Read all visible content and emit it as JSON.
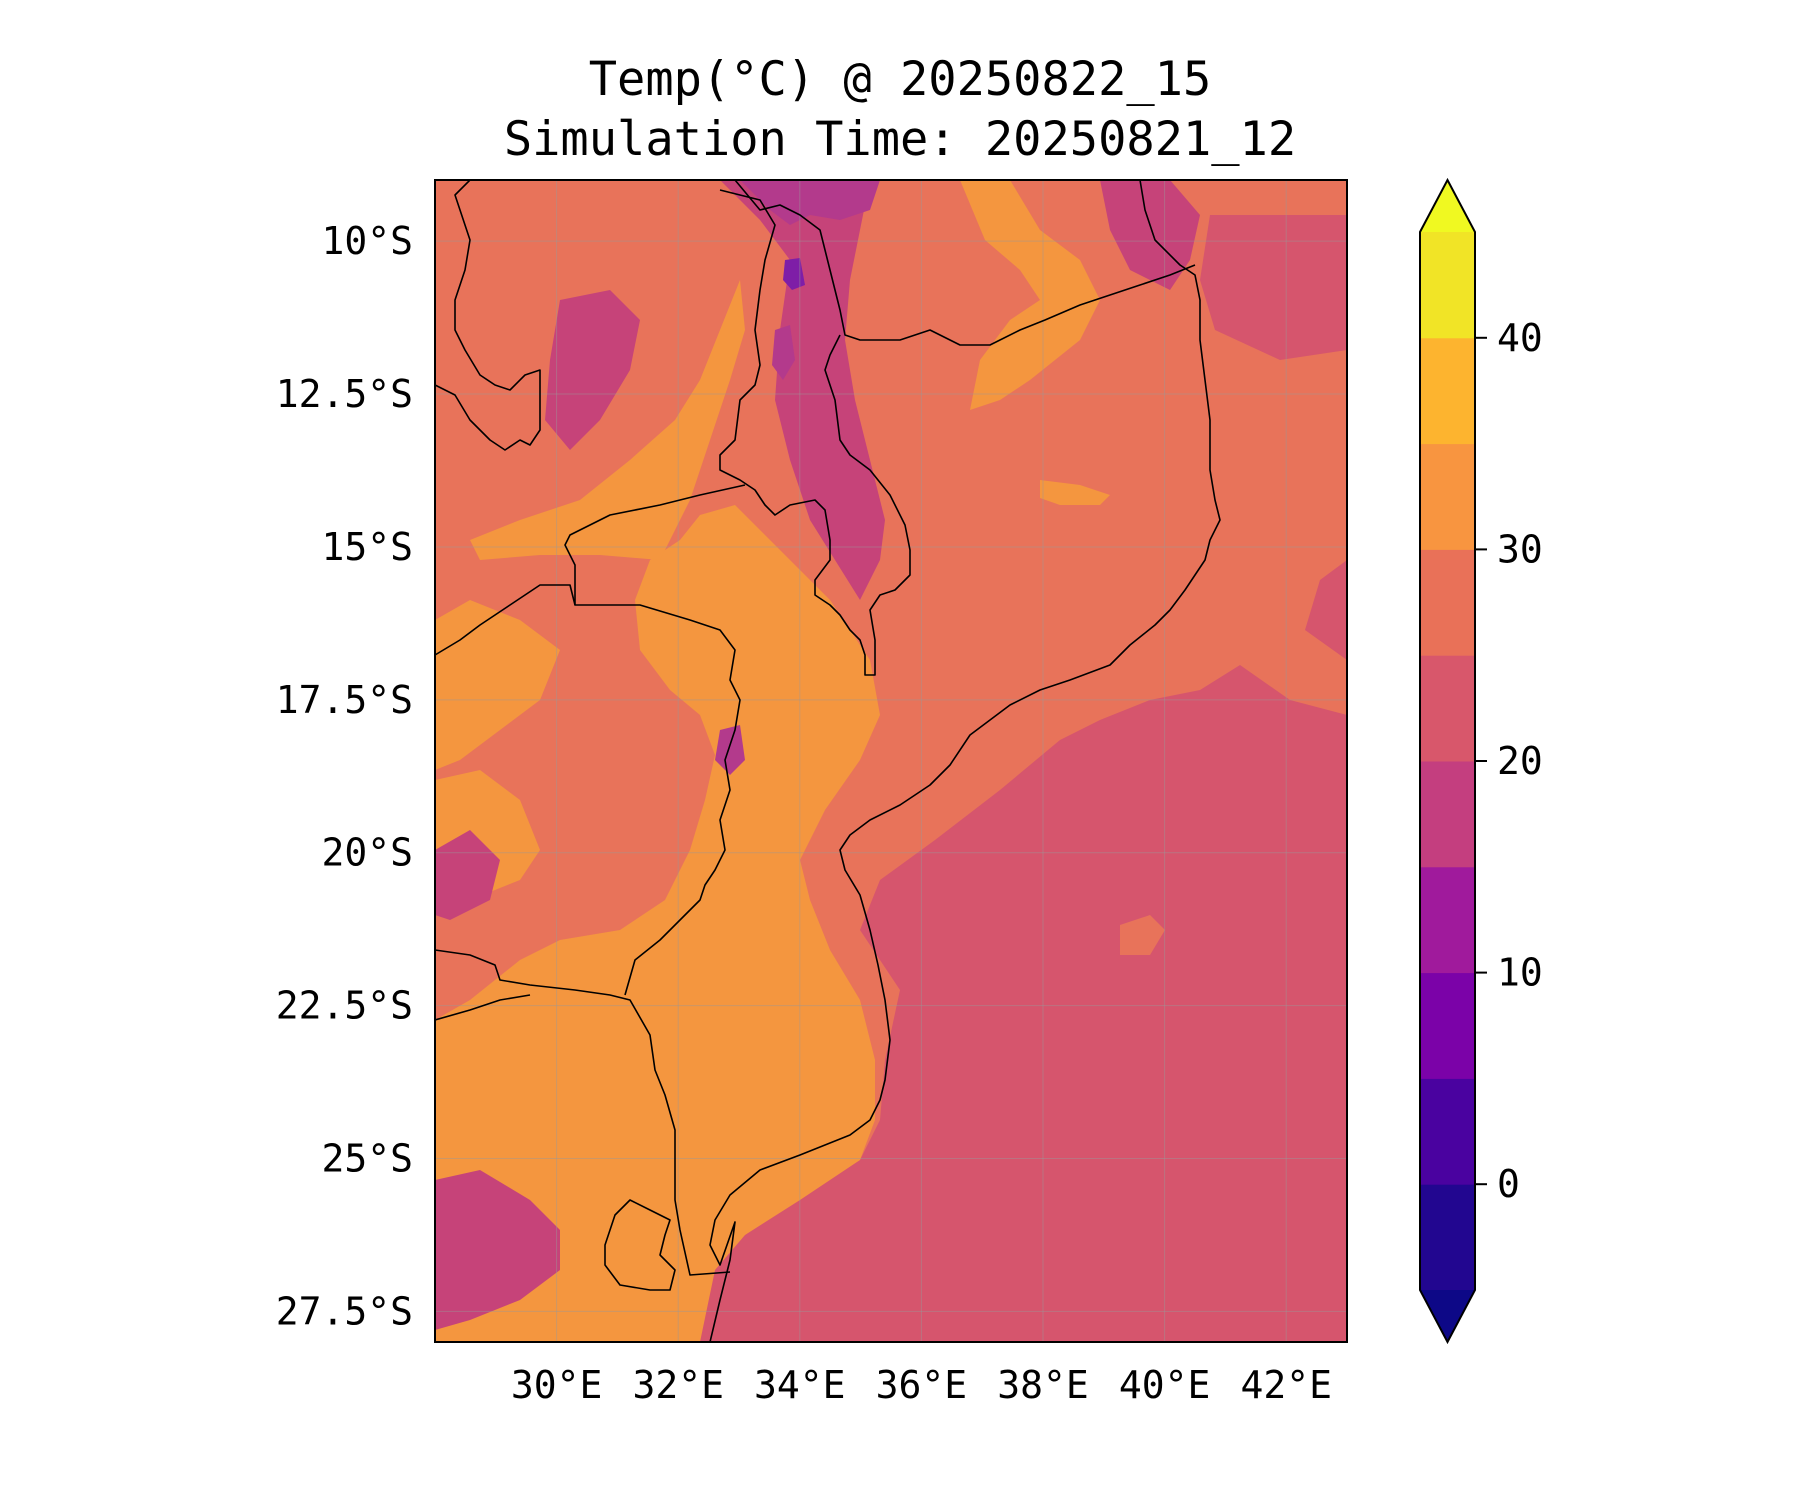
{
  "title": {
    "line1": "Temp(°C) @ 20250822_15",
    "line2": "Simulation Time: 20250821_12"
  },
  "map": {
    "variable": "Temperature",
    "units": "°C",
    "valid_time": "20250822_15",
    "simulation_time": "20250821_12",
    "lon_range": [
      28.0,
      43.0
    ],
    "lat_range": [
      -28.0,
      -9.0
    ],
    "lon_ticks": [
      30,
      32,
      34,
      36,
      38,
      40,
      42
    ],
    "lon_tick_labels": [
      "30°E",
      "32°E",
      "34°E",
      "36°E",
      "38°E",
      "40°E",
      "42°E"
    ],
    "lat_ticks": [
      -10,
      -12.5,
      -15,
      -17.5,
      -20,
      -22.5,
      -25,
      -27.5
    ],
    "lat_tick_labels": [
      "10°S",
      "12.5°S",
      "15°S",
      "17.5°S",
      "20°S",
      "22.5°S",
      "25°S",
      "27.5°S"
    ],
    "gridlines": true,
    "colormap": "plasma",
    "region": "Mozambique and Mozambique Channel"
  },
  "colorbar": {
    "extend": "both",
    "orientation": "vertical",
    "levels": [
      -5,
      0,
      5,
      10,
      15,
      20,
      25,
      30,
      35,
      40,
      45
    ],
    "colors": [
      "#220690",
      "#4a02a0",
      "#7b02a8",
      "#a01a9c",
      "#c43e7f",
      "#d8576b",
      "#e97158",
      "#f89540",
      "#fdb42f",
      "#f1e426"
    ],
    "under_color": "#0d0887",
    "over_color": "#f0f921",
    "ticks": [
      0,
      10,
      20,
      30,
      40
    ],
    "tick_labels": [
      "0",
      "10",
      "20",
      "30",
      "40"
    ]
  },
  "field_colors": {
    "ocean": "#d6556d",
    "land_warm": "#e8735a",
    "land_hot": "#f4963f",
    "highland_cool": "#c64379",
    "lake_cold": "#b33a8c",
    "coast_line": "#000000",
    "grid_line": "#9a9a9a"
  }
}
